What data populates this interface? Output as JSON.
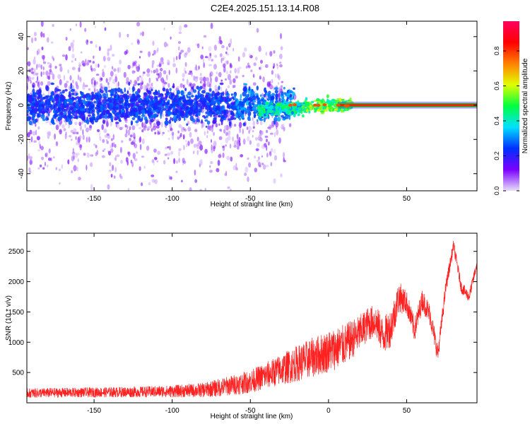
{
  "figure_title": "C2E4.2025.151.13.14.R08",
  "chart_data": [
    {
      "type": "heatmap",
      "title": "C2E4.2025.151.13.14.R08",
      "xlabel": "Height of straight line (km)",
      "ylabel": "Frequency (Hz)",
      "xlim": [
        -193,
        95
      ],
      "ylim": [
        -50,
        49
      ],
      "xticks": [
        -150,
        -100,
        -50,
        0,
        50
      ],
      "yticks": [
        -40,
        -20,
        0,
        20,
        40
      ],
      "colorbar": {
        "label": "Normalized spectral amplitude",
        "range": [
          0,
          0.97
        ],
        "ticks": [
          0.0,
          0.2,
          0.4,
          0.6,
          0.8
        ],
        "colormap": [
          "#e8e0f8",
          "#7a00ff",
          "#0030ff",
          "#00e0ff",
          "#00ff40",
          "#e0ff00",
          "#ff8000",
          "#ff0000",
          "#ff0060"
        ]
      },
      "features": {
        "main_band_frequency_hz": 0,
        "noisy_region_km": [
          -193,
          -30
        ],
        "transition_region_km": [
          -45,
          15
        ],
        "clean_tone_region_km": [
          15,
          95
        ],
        "tone_amplitude": 0.85
      },
      "grid": false,
      "legend": "none"
    },
    {
      "type": "line",
      "xlabel": "Height of straight line (km)",
      "ylabel": "SNR (10 * v/v)",
      "xlim": [
        -193,
        95
      ],
      "ylim": [
        0,
        2800
      ],
      "xticks": [
        -150,
        -100,
        -50,
        0,
        50
      ],
      "yticks": [
        500,
        1000,
        1500,
        2000,
        2500
      ],
      "series": [
        {
          "color": "#ff2020",
          "x": [
            -193,
            -180,
            -160,
            -140,
            -120,
            -100,
            -80,
            -70,
            -60,
            -50,
            -40,
            -30,
            -20,
            -10,
            0,
            5,
            10,
            15,
            20,
            25,
            30,
            35,
            40,
            45,
            50,
            55,
            60,
            65,
            70,
            75,
            80,
            85,
            90,
            95
          ],
          "y": [
            160,
            165,
            170,
            175,
            180,
            190,
            210,
            250,
            300,
            350,
            450,
            550,
            650,
            750,
            850,
            900,
            950,
            1050,
            1150,
            1300,
            1350,
            1100,
            1250,
            1750,
            1650,
            1200,
            1700,
            1450,
            800,
            1900,
            2600,
            1900,
            1750,
            2300
          ],
          "noise_amplitude": [
            80,
            80,
            80,
            85,
            90,
            100,
            120,
            150,
            170,
            190,
            220,
            260,
            300,
            330,
            350,
            350,
            340,
            320,
            300,
            280,
            280,
            300,
            320,
            260,
            200,
            200,
            180,
            180,
            150,
            120,
            100,
            100,
            90,
            90
          ]
        }
      ],
      "grid": false,
      "legend": "none"
    }
  ]
}
